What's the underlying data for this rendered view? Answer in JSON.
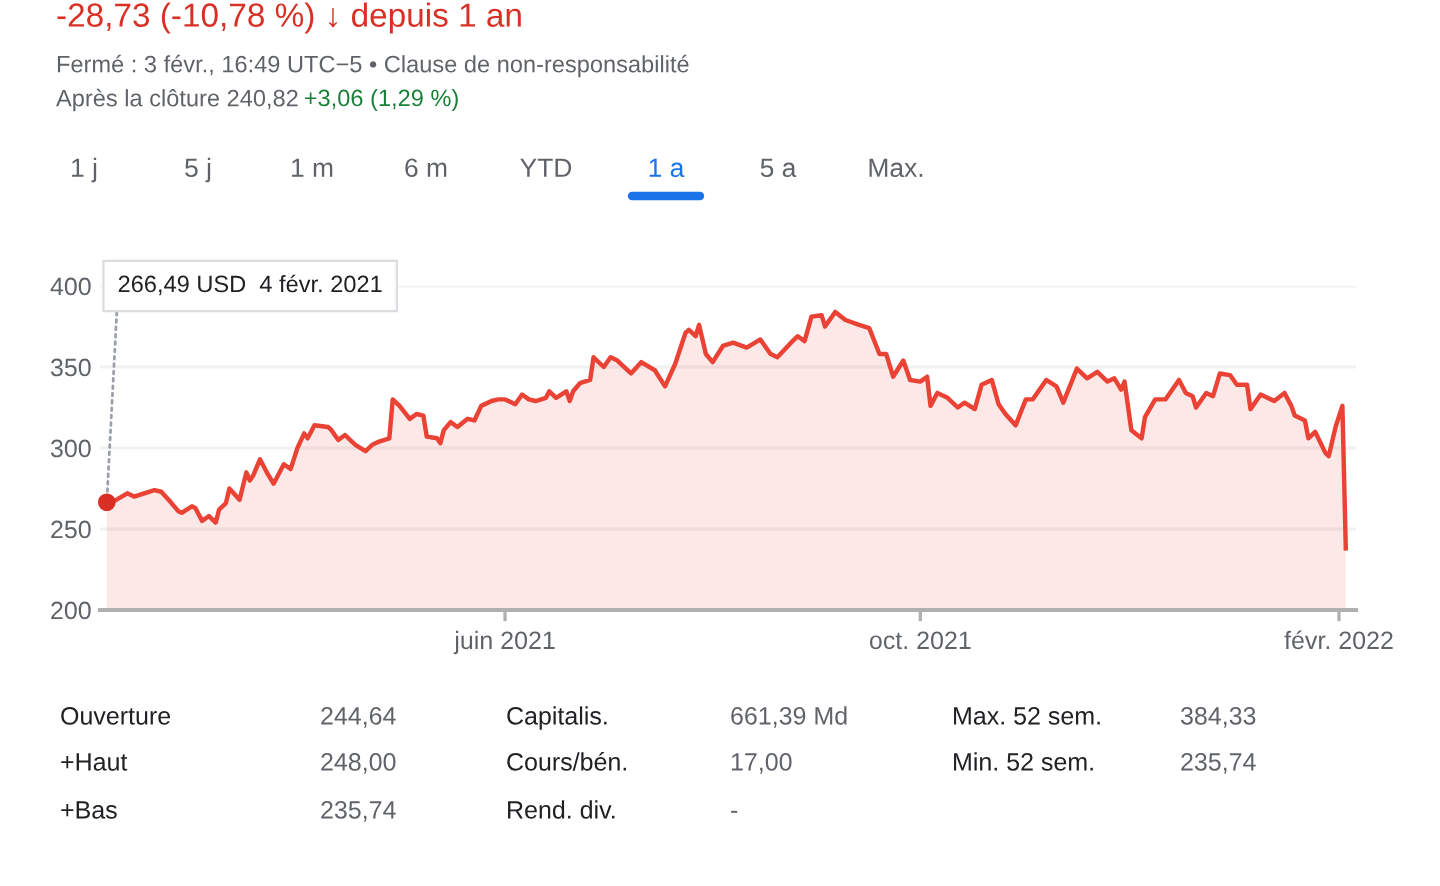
{
  "chart_data": {
    "type": "area",
    "title": "-28,73 (-10,78 %) ↓ depuis 1 an",
    "subtitle": "Fermé : 3 févr., 16:49 UTC−5 • Clause de non-responsabilité",
    "annotations": [
      {
        "text": "266,49 USD  4 févr. 2021",
        "x": "2021-02-04",
        "y": 266.49
      },
      "Après la clôture 240,82",
      "+3,06 (1,29 %)",
      "1 j",
      "5 j",
      "1 m",
      "6 m",
      "YTD",
      "1 a",
      "5 a",
      "Max.",
      "Ouverture",
      "244,64",
      "Capitalis.",
      "661,39 Md",
      "Max. 52 sem.",
      "384,33",
      "+Haut",
      "248,00",
      "Cours/bén.",
      "17,00",
      "Min. 52 sem.",
      "235,74",
      "+Bas",
      "235,74",
      "Rend. div.",
      "-"
    ],
    "series": [
      {
        "color": "#ea4335",
        "x": [
          "2021-02-04",
          "2021-02-06",
          "2021-02-10",
          "2021-02-12",
          "2021-02-15",
          "2021-02-18",
          "2021-02-20",
          "2021-02-23",
          "2021-02-25",
          "2021-02-26",
          "2021-03-01",
          "2021-03-02",
          "2021-03-04",
          "2021-03-06",
          "2021-03-08",
          "2021-03-09",
          "2021-03-11",
          "2021-03-12",
          "2021-03-15",
          "2021-03-17",
          "2021-03-18",
          "2021-03-19",
          "2021-03-21",
          "2021-03-23",
          "2021-03-25",
          "2021-03-26",
          "2021-03-28",
          "2021-03-30",
          "2021-04-01",
          "2021-04-03",
          "2021-04-04",
          "2021-04-06",
          "2021-04-10",
          "2021-04-11",
          "2021-04-13",
          "2021-04-15",
          "2021-04-17",
          "2021-04-18",
          "2021-04-21",
          "2021-04-23",
          "2021-04-25",
          "2021-04-28",
          "2021-04-29",
          "2021-05-01",
          "2021-05-04",
          "2021-05-06",
          "2021-05-08",
          "2021-05-09",
          "2021-05-12",
          "2021-05-13",
          "2021-05-14",
          "2021-05-16",
          "2021-05-18",
          "2021-05-21",
          "2021-05-23",
          "2021-05-25",
          "2021-05-28",
          "2021-05-30",
          "2021-06-01",
          "2021-06-04",
          "2021-06-06",
          "2021-06-08",
          "2021-06-10",
          "2021-06-13",
          "2021-06-14",
          "2021-06-16",
          "2021-06-19",
          "2021-06-20",
          "2021-06-21",
          "2021-06-23",
          "2021-06-26",
          "2021-06-27",
          "2021-06-30",
          "2021-07-02",
          "2021-07-04",
          "2021-07-08",
          "2021-07-11",
          "2021-07-15",
          "2021-07-18",
          "2021-07-21",
          "2021-07-24",
          "2021-07-25",
          "2021-07-27",
          "2021-07-28",
          "2021-07-30",
          "2021-08-01",
          "2021-08-04",
          "2021-08-07",
          "2021-08-11",
          "2021-08-15",
          "2021-08-18",
          "2021-08-20",
          "2021-08-24",
          "2021-08-26",
          "2021-08-28",
          "2021-08-30",
          "2021-09-02",
          "2021-09-03",
          "2021-09-06",
          "2021-09-09",
          "2021-09-13",
          "2021-09-16",
          "2021-09-19",
          "2021-09-21",
          "2021-09-23",
          "2021-09-26",
          "2021-09-28",
          "2021-10-01",
          "2021-10-03",
          "2021-10-04",
          "2021-10-06",
          "2021-10-09",
          "2021-10-12",
          "2021-10-14",
          "2021-10-17",
          "2021-10-19",
          "2021-10-22",
          "2021-10-24",
          "2021-10-26",
          "2021-10-29",
          "2021-11-01",
          "2021-11-03",
          "2021-11-07",
          "2021-11-10",
          "2021-11-12",
          "2021-11-16",
          "2021-11-19",
          "2021-11-22",
          "2021-11-25",
          "2021-11-27",
          "2021-11-29",
          "2021-11-30",
          "2021-12-02",
          "2021-12-05",
          "2021-12-06",
          "2021-12-09",
          "2021-12-12",
          "2021-12-16",
          "2021-12-18",
          "2021-12-20",
          "2021-12-21",
          "2021-12-24",
          "2021-12-26",
          "2021-12-28",
          "2021-12-31",
          "2022-01-02",
          "2022-01-05",
          "2022-01-06",
          "2022-01-09",
          "2022-01-13",
          "2022-01-16",
          "2022-01-18",
          "2022-01-19",
          "2022-01-22",
          "2022-01-23",
          "2022-01-25",
          "2022-01-28",
          "2022-01-29",
          "2022-01-31",
          "2022-02-02",
          "2022-02-03"
        ],
        "values": [
          266.49,
          267,
          272,
          270,
          272,
          274,
          273,
          266,
          261,
          260,
          264,
          263,
          255,
          258,
          254,
          262,
          266,
          275,
          268,
          285,
          280,
          283,
          293,
          285,
          278,
          282,
          290,
          287,
          300,
          309,
          306,
          314,
          313,
          311,
          305,
          308,
          304,
          302,
          298,
          302,
          304,
          306,
          330,
          326,
          318,
          321,
          320,
          307,
          306,
          303,
          311,
          316,
          313,
          318,
          317,
          326,
          329,
          330,
          330,
          327,
          333,
          330,
          329,
          331,
          335,
          331,
          335,
          329,
          335,
          340,
          342,
          356,
          350,
          356,
          354,
          346,
          353,
          348,
          338,
          352,
          371,
          373,
          369,
          376,
          358,
          353,
          363,
          365,
          362,
          367,
          358,
          356,
          365,
          369,
          366,
          381,
          382,
          375,
          384,
          379,
          376,
          374,
          358,
          358,
          344,
          354,
          342,
          341,
          344,
          326,
          334,
          331,
          325,
          328,
          324,
          339,
          342,
          327,
          321,
          314,
          330,
          330,
          342,
          338,
          328,
          349,
          343,
          347,
          341,
          343,
          336,
          341,
          311,
          306,
          319,
          330,
          330,
          342,
          334,
          332,
          325,
          334,
          332,
          346,
          345,
          339,
          339,
          324,
          333,
          329,
          334,
          326,
          320,
          317,
          306,
          310,
          297,
          295,
          313,
          326,
          238
        ]
      },
      {
        "type": "scatter",
        "marker": "circle",
        "color": "#d93025",
        "x": [
          "2021-02-04"
        ],
        "values": [
          266.49
        ]
      }
    ],
    "xlim": [
      "2021-02-02",
      "2022-02-06"
    ],
    "xticks": [
      {
        "value": "2021-06-01",
        "label": "juin 2021"
      },
      {
        "value": "2021-10-01",
        "label": "oct. 2021"
      },
      {
        "value": "2022-02-01",
        "label": "févr. 2022"
      }
    ],
    "ylim": [
      200,
      400
    ],
    "yticks": [
      200,
      250,
      300,
      350,
      400
    ],
    "grid": "y",
    "legend": false,
    "marker": "none",
    "line_style": "solid"
  }
}
